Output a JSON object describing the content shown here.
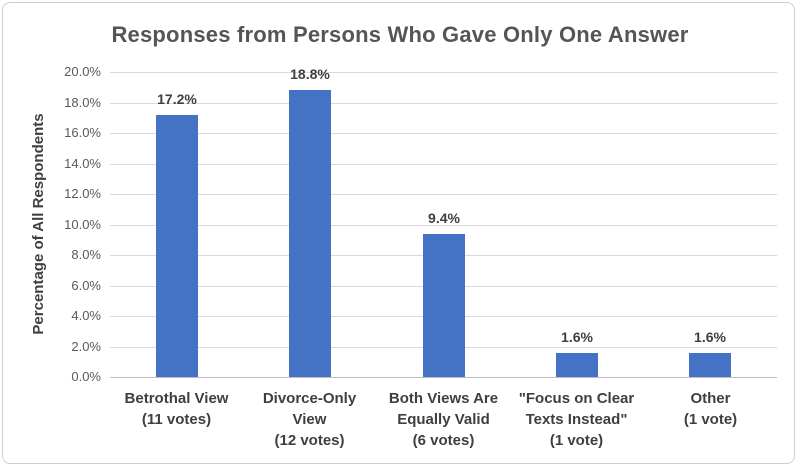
{
  "chart_data": {
    "type": "bar",
    "title": "Responses from Persons Who Gave Only One Answer",
    "xlabel": "",
    "ylabel": "Percentage of All Respondents",
    "categories": [
      "Betrothal View\n(11 votes)",
      "Divorce-Only\nView\n(12 votes)",
      "Both Views Are\nEqually Valid\n(6 votes)",
      "\"Focus on Clear\nTexts Instead\"\n(1 vote)",
      "Other\n(1 vote)"
    ],
    "values": [
      17.2,
      18.8,
      9.4,
      1.6,
      1.6
    ],
    "value_labels": [
      "17.2%",
      "18.8%",
      "9.4%",
      "1.6%",
      "1.6%"
    ],
    "ylim": [
      0,
      20
    ],
    "ytick_step": 2,
    "ytick_labels": [
      "0.0%",
      "2.0%",
      "4.0%",
      "6.0%",
      "8.0%",
      "10.0%",
      "12.0%",
      "14.0%",
      "16.0%",
      "18.0%",
      "20.0%"
    ],
    "grid": true,
    "legend": "none",
    "bar_color": "#4472C4",
    "gridline_color": "#D9D9D9"
  }
}
